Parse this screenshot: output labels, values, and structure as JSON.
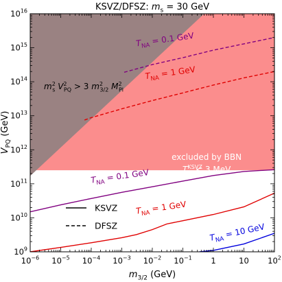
{
  "chart_data": {
    "type": "line",
    "title": {
      "prefix": "KSVZ/DFSZ:  ",
      "var": "m",
      "sub": "s",
      "suffix": " = 30 GeV"
    },
    "xlabel": {
      "var": "m",
      "sub": "3/2",
      "unit": " (GeV)"
    },
    "ylabel": {
      "var": "V",
      "sub": "PQ",
      "unit": " (GeV)"
    },
    "x_scale": "log",
    "y_scale": "log",
    "xlim": [
      1e-06,
      100
    ],
    "ylim": [
      1000000000.0,
      1e+16
    ],
    "x_ticks": [
      {
        "value": 1e-06,
        "base": "10",
        "exp": "−6"
      },
      {
        "value": 1e-05,
        "base": "10",
        "exp": "−5"
      },
      {
        "value": 0.0001,
        "base": "10",
        "exp": "−4"
      },
      {
        "value": 0.001,
        "base": "10",
        "exp": "−3"
      },
      {
        "value": 0.01,
        "base": "10",
        "exp": "−2"
      },
      {
        "value": 0.1,
        "base": "10",
        "exp": "−1"
      },
      {
        "value": 1,
        "base": "1",
        "exp": ""
      },
      {
        "value": 10,
        "base": "10",
        "exp": ""
      },
      {
        "value": 100,
        "base": "10",
        "exp": "2"
      }
    ],
    "y_ticks": [
      {
        "value": 1000000000.0,
        "base": "10",
        "exp": "9"
      },
      {
        "value": 10000000000.0,
        "base": "10",
        "exp": "10"
      },
      {
        "value": 100000000000.0,
        "base": "10",
        "exp": "11"
      },
      {
        "value": 1000000000000.0,
        "base": "10",
        "exp": "12"
      },
      {
        "value": 10000000000000.0,
        "base": "10",
        "exp": "13"
      },
      {
        "value": 100000000000000.0,
        "base": "10",
        "exp": "14"
      },
      {
        "value": 1000000000000000.0,
        "base": "10",
        "exp": "15"
      },
      {
        "value": 1e+16,
        "base": "10",
        "exp": "16"
      }
    ],
    "regions": [
      {
        "id": "bbn",
        "color": "#fb8d8d",
        "y_min": 250000000000.0,
        "label_lines": [
          "excluded by BBN",
          "T_Rs^KSVZ < 3 MeV"
        ],
        "label_pos": [
          0.6,
          500000000000.0
        ]
      },
      {
        "id": "unphysical",
        "color": "#9a8282",
        "boundary": [
          [
            1e-06,
            170000000000.0
          ],
          [
            0.5,
            1e+16
          ]
        ],
        "label": "m_s^2 V_PQ^2 > 3 m_3/2^2 M_Pl^2",
        "label_pos": [
          1e-06,
          60000000000000.0
        ]
      }
    ],
    "series": [
      {
        "name": "T_NA = 0.1 GeV",
        "model": "KSVZ",
        "color": "#800080",
        "dash": false,
        "x": [
          1e-06,
          1e-05,
          0.0001,
          0.001,
          0.01,
          0.1,
          1,
          10,
          100
        ],
        "y": [
          15000000000.0,
          24000000000.0,
          37000000000.0,
          56000000000.0,
          82000000000.0,
          120000000000.0,
          175000000000.0,
          230000000000.0,
          260000000000.0
        ],
        "label": {
          "text": "T_NA = 0.1 GeV",
          "x": 0.0001,
          "y": 105000000000.0,
          "angle": -8
        }
      },
      {
        "name": "T_NA = 1 GeV",
        "model": "KSVZ",
        "color": "#e00000",
        "dash": false,
        "x": [
          1e-06,
          1e-05,
          0.0001,
          0.001,
          0.003,
          0.01,
          0.03,
          0.1,
          1,
          10,
          100
        ],
        "y": [
          1000000000.0,
          1350000000.0,
          1850000000.0,
          2600000000.0,
          3200000000.0,
          4500000000.0,
          6600000000.0,
          8200000000.0,
          12500000000.0,
          21000000000.0,
          53000000000.0
        ],
        "label": {
          "text": "T_NA = 1 GeV",
          "x": 0.003,
          "y": 13000000000.0,
          "angle": -8
        }
      },
      {
        "name": "T_NA = 10 GeV",
        "model": "KSVZ",
        "color": "#0000dd",
        "dash": false,
        "x": [
          0.35,
          1,
          10,
          100
        ],
        "y": [
          1000000000.0,
          1100000000.0,
          1700000000.0,
          3500000000.0
        ],
        "label": {
          "text": "T_NA = 10 GeV",
          "x": 0.8,
          "y": 2100000000.0,
          "angle": -12
        }
      },
      {
        "name": "T_NA = 0.1 GeV",
        "model": "DFSZ",
        "color": "#800080",
        "dash": true,
        "x": [
          0.0012,
          0.01,
          0.1,
          1,
          10,
          100
        ],
        "y": [
          190000000000000.0,
          320000000000000.0,
          510000000000000.0,
          850000000000000.0,
          1300000000000000.0,
          2000000000000000.0
        ],
        "label": {
          "text": "T_NA = 0.1 GeV",
          "x": 0.003,
          "y": 1100000000000000.0,
          "angle": -8
        }
      },
      {
        "name": "T_NA = 1 GeV",
        "model": "DFSZ",
        "color": "#e00000",
        "dash": true,
        "x": [
          6e-05,
          0.0001,
          0.001,
          0.01,
          0.1,
          1,
          10,
          100
        ],
        "y": [
          7500000000000.0,
          8800000000000.0,
          16000000000000.0,
          28000000000000.0,
          47000000000000.0,
          80000000000000.0,
          130000000000000.0,
          200000000000000.0
        ],
        "label": {
          "text": "T_NA = 1 GeV",
          "x": 0.006,
          "y": 120000000000000.0,
          "angle": -8
        }
      }
    ],
    "legend": {
      "position": "bottom-left",
      "entries": [
        {
          "label": "KSVZ",
          "style": "solid"
        },
        {
          "label": "DFSZ",
          "style": "dashed"
        }
      ]
    }
  }
}
